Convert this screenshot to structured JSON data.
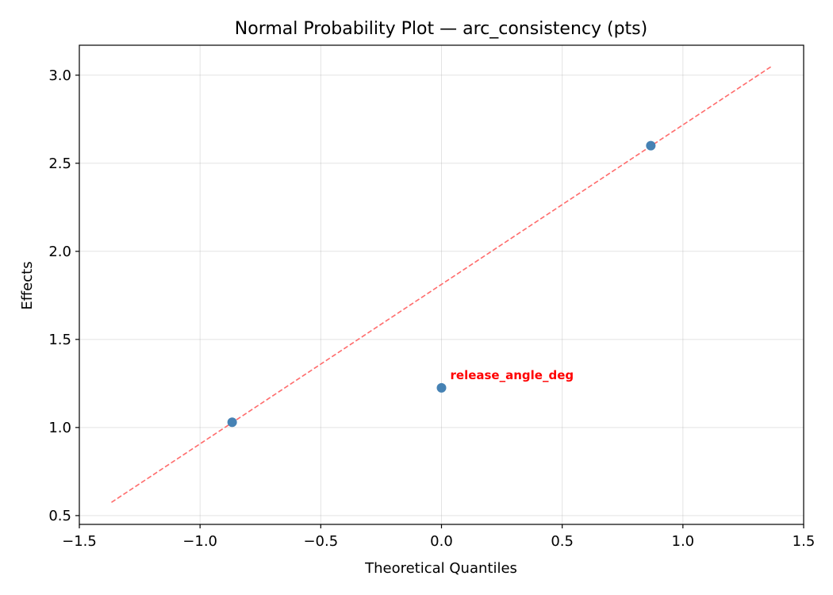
{
  "chart_data": {
    "type": "scatter",
    "title": "Normal Probability Plot — arc_consistency (pts)",
    "xlabel": "Theoretical Quantiles",
    "ylabel": "Effects",
    "xlim": [
      -1.5,
      1.5
    ],
    "ylim": [
      0.45,
      3.17
    ],
    "xticks": [
      -1.5,
      -1.0,
      -0.5,
      0.0,
      0.5,
      1.0,
      1.5
    ],
    "xtick_labels": [
      "−1.5",
      "−1.0",
      "−0.5",
      "0.0",
      "0.5",
      "1.0",
      "1.5"
    ],
    "yticks": [
      0.5,
      1.0,
      1.5,
      2.0,
      2.5,
      3.0
    ],
    "ytick_labels": [
      "0.5",
      "1.0",
      "1.5",
      "2.0",
      "2.5",
      "3.0"
    ],
    "grid": true,
    "points": [
      {
        "x": -0.867,
        "y": 1.03
      },
      {
        "x": 0.0,
        "y": 1.225
      },
      {
        "x": 0.867,
        "y": 2.6
      }
    ],
    "reference_line": {
      "x": [
        -1.367,
        1.367
      ],
      "y": [
        0.575,
        3.05
      ],
      "style": "dashed"
    },
    "annotations": [
      {
        "text": "release_angle_deg",
        "x": 0.0,
        "y": 1.225
      }
    ],
    "colors": {
      "points": "#4682b4",
      "reference_line": "#ff6b6b",
      "annotation": "#ff0000"
    }
  }
}
